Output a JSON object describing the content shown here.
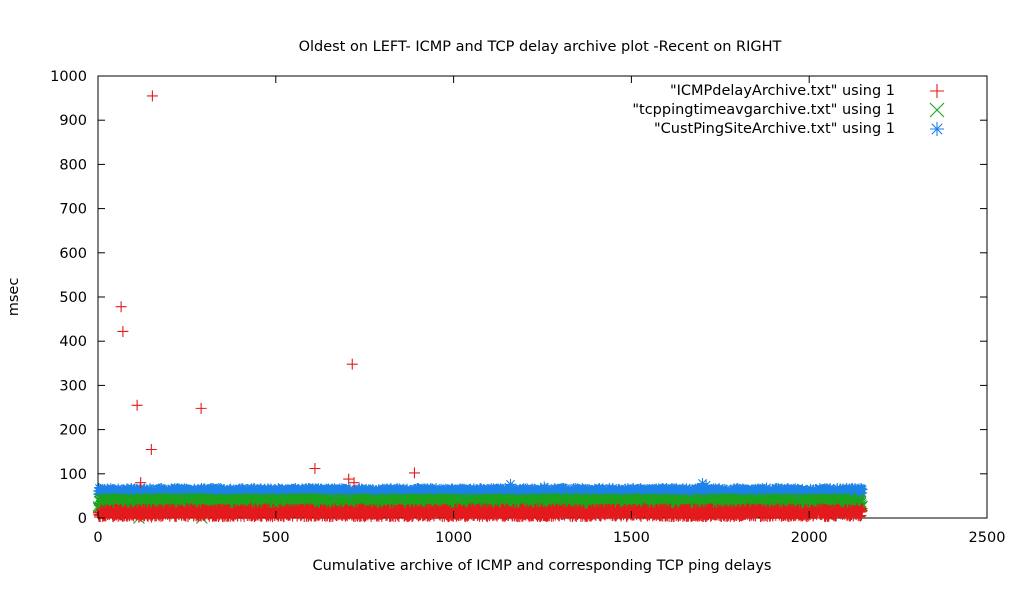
{
  "chart_data": {
    "type": "scatter",
    "title": "Oldest on LEFT- ICMP and TCP delay archive plot -Recent on RIGHT",
    "xlabel": "Cumulative archive of ICMP and corresponding TCP ping delays",
    "ylabel": "msec",
    "xlim": [
      0,
      2500
    ],
    "ylim": [
      0,
      1000
    ],
    "x_ticks": [
      0,
      500,
      1000,
      1500,
      2000,
      2500
    ],
    "y_ticks": [
      0,
      100,
      200,
      300,
      400,
      500,
      600,
      700,
      800,
      900,
      1000
    ],
    "grid": false,
    "legend_position": "top-right",
    "series": [
      {
        "name": "\"ICMPdelayArchive.txt\" using 1",
        "marker": "plus",
        "color": "#e41a1c",
        "band": {
          "x_range": [
            0,
            2150
          ],
          "y_range": [
            2,
            22
          ]
        },
        "outliers": [
          [
            153,
            955
          ],
          [
            65,
            478
          ],
          [
            70,
            422
          ],
          [
            110,
            255
          ],
          [
            290,
            248
          ],
          [
            150,
            155
          ],
          [
            610,
            112
          ],
          [
            715,
            348
          ],
          [
            705,
            88
          ],
          [
            890,
            102
          ],
          [
            720,
            80
          ],
          [
            120,
            80
          ],
          [
            115,
            2
          ],
          [
            150,
            2
          ]
        ]
      },
      {
        "name": "\"tcppingtimeavgarchive.txt\" using 1",
        "marker": "cross",
        "color": "#1ca51c",
        "band": {
          "x_range": [
            0,
            2150
          ],
          "y_range": [
            22,
            45
          ]
        },
        "outliers": [
          [
            115,
            0
          ],
          [
            292,
            0
          ],
          [
            60,
            10
          ],
          [
            900,
            18
          ]
        ]
      },
      {
        "name": "\"CustPingSiteArchive.txt\" using 1",
        "marker": "star",
        "color": "#1e82e8",
        "band": {
          "x_range": [
            0,
            2150
          ],
          "y_range": [
            48,
            68
          ]
        },
        "outliers": [
          [
            1160,
            76
          ],
          [
            1255,
            70
          ],
          [
            1700,
            78
          ],
          [
            1710,
            74
          ],
          [
            1880,
            68
          ]
        ]
      }
    ]
  }
}
